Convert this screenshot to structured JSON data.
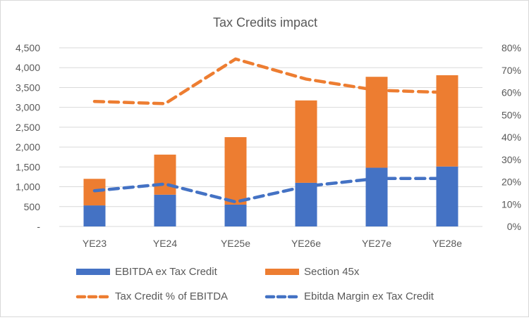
{
  "chart_data": {
    "type": "bar",
    "title": "Tax Credits impact",
    "categories": [
      "YE23",
      "YE24",
      "YE25e",
      "YE26e",
      "YE27e",
      "YE28e"
    ],
    "stacked": true,
    "series": [
      {
        "name": "EBITDA ex Tax Credit",
        "kind": "bar",
        "axis": "left",
        "color": "#4472C4",
        "values": [
          530,
          800,
          550,
          1100,
          1480,
          1510
        ]
      },
      {
        "name": "Section 45x",
        "kind": "bar",
        "axis": "left",
        "color": "#ED7D31",
        "values": [
          670,
          1010,
          1700,
          2075,
          2290,
          2300
        ]
      },
      {
        "name": "Tax Credit % of EBITDA",
        "kind": "line",
        "dashed": true,
        "axis": "right",
        "color": "#ED7D31",
        "values": [
          0.56,
          0.55,
          0.75,
          0.66,
          0.61,
          0.6
        ]
      },
      {
        "name": "Ebitda Margin ex Tax Credit",
        "kind": "line",
        "dashed": true,
        "axis": "right",
        "color": "#4472C4",
        "values": [
          0.16,
          0.19,
          0.11,
          0.18,
          0.215,
          0.215
        ]
      }
    ],
    "ylim": [
      0,
      4500
    ],
    "ylim_right": [
      0,
      0.8
    ],
    "yticks": [
      "-",
      "500",
      "1,000",
      "1,500",
      "2,000",
      "2,500",
      "3,000",
      "3,500",
      "4,000",
      "4,500"
    ],
    "yticks_right": [
      "0%",
      "10%",
      "20%",
      "30%",
      "40%",
      "50%",
      "60%",
      "70%",
      "80%"
    ],
    "grid": true,
    "legend": "bottom",
    "xlabel": "",
    "ylabel": ""
  }
}
